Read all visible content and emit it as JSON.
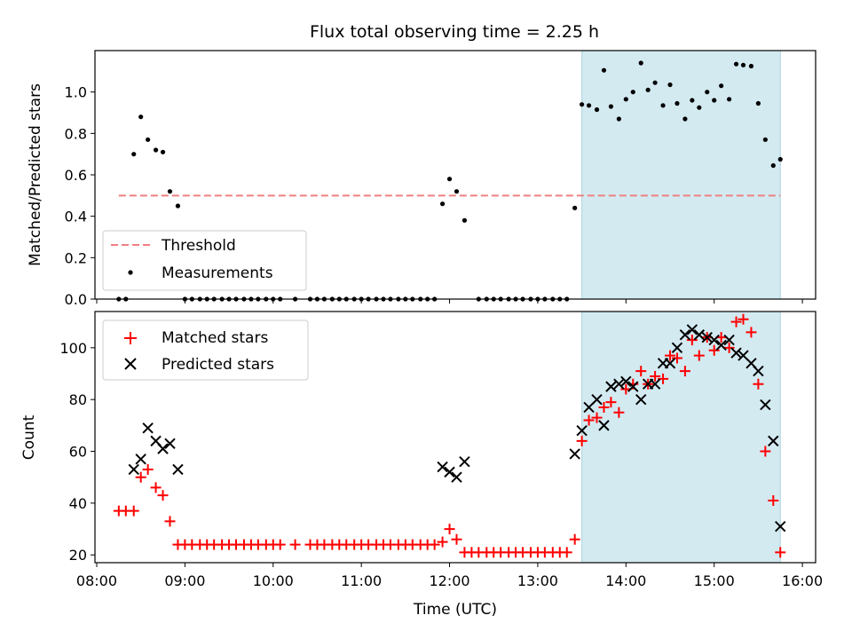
{
  "chart_data": {
    "title": "Flux total observing time = 2.25 h",
    "xlabel": "Time (UTC)",
    "x_ticks": [
      "08:00",
      "09:00",
      "10:00",
      "11:00",
      "12:00",
      "13:00",
      "14:00",
      "15:00",
      "16:00"
    ],
    "x_range_hours": [
      7.98,
      16.15
    ],
    "observing_window_hours": [
      13.5,
      15.75
    ],
    "window_color": "#d3eaf1",
    "panels": [
      {
        "type": "scatter",
        "ylabel": "Matched/Predicted stars",
        "ylim": [
          0,
          1.2
        ],
        "y_ticks": [
          "0.0",
          "0.2",
          "0.4",
          "0.6",
          "0.8",
          "1.0"
        ],
        "legend_position": "lower-left",
        "threshold": {
          "name": "Threshold",
          "value": 0.5,
          "x_range": [
            8.25,
            15.75
          ],
          "color": "#f08080"
        },
        "series": [
          {
            "name": "Measurements",
            "color": "#000000",
            "points": [
              [
                8.25,
                0
              ],
              [
                8.33,
                0
              ],
              [
                8.42,
                0.7
              ],
              [
                8.5,
                0.88
              ],
              [
                8.58,
                0.77
              ],
              [
                8.67,
                0.72
              ],
              [
                8.75,
                0.71
              ],
              [
                8.83,
                0.52
              ],
              [
                8.92,
                0.45
              ],
              [
                9.0,
                0
              ],
              [
                9.08,
                0
              ],
              [
                9.17,
                0
              ],
              [
                9.25,
                0
              ],
              [
                9.33,
                0
              ],
              [
                9.42,
                0
              ],
              [
                9.5,
                0
              ],
              [
                9.58,
                0
              ],
              [
                9.67,
                0
              ],
              [
                9.75,
                0
              ],
              [
                9.83,
                0
              ],
              [
                9.92,
                0
              ],
              [
                10.0,
                0
              ],
              [
                10.08,
                0
              ],
              [
                10.25,
                0
              ],
              [
                10.42,
                0
              ],
              [
                10.5,
                0
              ],
              [
                10.58,
                0
              ],
              [
                10.67,
                0
              ],
              [
                10.75,
                0
              ],
              [
                10.83,
                0
              ],
              [
                10.92,
                0
              ],
              [
                11.0,
                0
              ],
              [
                11.08,
                0
              ],
              [
                11.17,
                0
              ],
              [
                11.25,
                0
              ],
              [
                11.33,
                0
              ],
              [
                11.42,
                0
              ],
              [
                11.5,
                0
              ],
              [
                11.58,
                0
              ],
              [
                11.67,
                0
              ],
              [
                11.75,
                0
              ],
              [
                11.83,
                0
              ],
              [
                11.92,
                0.46
              ],
              [
                12.0,
                0.58
              ],
              [
                12.08,
                0.52
              ],
              [
                12.17,
                0.38
              ],
              [
                12.33,
                0
              ],
              [
                12.42,
                0
              ],
              [
                12.5,
                0
              ],
              [
                12.58,
                0
              ],
              [
                12.67,
                0
              ],
              [
                12.75,
                0
              ],
              [
                12.83,
                0
              ],
              [
                12.92,
                0
              ],
              [
                13.0,
                0
              ],
              [
                13.08,
                0
              ],
              [
                13.17,
                0
              ],
              [
                13.25,
                0
              ],
              [
                13.33,
                0
              ],
              [
                13.42,
                0.44
              ],
              [
                13.5,
                0.94
              ],
              [
                13.58,
                0.935
              ],
              [
                13.67,
                0.915
              ],
              [
                13.75,
                1.105
              ],
              [
                13.83,
                0.93
              ],
              [
                13.92,
                0.87
              ],
              [
                14.0,
                0.965
              ],
              [
                14.08,
                1.0
              ],
              [
                14.17,
                1.14
              ],
              [
                14.25,
                1.01
              ],
              [
                14.33,
                1.045
              ],
              [
                14.42,
                0.935
              ],
              [
                14.5,
                1.035
              ],
              [
                14.58,
                0.945
              ],
              [
                14.67,
                0.87
              ],
              [
                14.75,
                0.96
              ],
              [
                14.83,
                0.925
              ],
              [
                14.92,
                1.0
              ],
              [
                15.0,
                0.96
              ],
              [
                15.08,
                1.03
              ],
              [
                15.17,
                0.965
              ],
              [
                15.25,
                1.135
              ],
              [
                15.33,
                1.13
              ],
              [
                15.42,
                1.125
              ],
              [
                15.5,
                0.945
              ],
              [
                15.58,
                0.77
              ],
              [
                15.67,
                0.645
              ],
              [
                15.75,
                0.675
              ]
            ]
          }
        ]
      },
      {
        "type": "scatter",
        "ylabel": "Count",
        "ylim": [
          17,
          114
        ],
        "y_ticks": [
          "20",
          "40",
          "60",
          "80",
          "100"
        ],
        "legend_position": "upper-left",
        "series": [
          {
            "name": "Matched stars",
            "marker": "plus",
            "color": "#ff0000",
            "points": [
              [
                8.25,
                37
              ],
              [
                8.33,
                37
              ],
              [
                8.42,
                37
              ],
              [
                8.5,
                50
              ],
              [
                8.58,
                53
              ],
              [
                8.67,
                46
              ],
              [
                8.75,
                43
              ],
              [
                8.83,
                33
              ],
              [
                8.92,
                24
              ],
              [
                9.0,
                24
              ],
              [
                9.08,
                24
              ],
              [
                9.17,
                24
              ],
              [
                9.25,
                24
              ],
              [
                9.33,
                24
              ],
              [
                9.42,
                24
              ],
              [
                9.5,
                24
              ],
              [
                9.58,
                24
              ],
              [
                9.67,
                24
              ],
              [
                9.75,
                24
              ],
              [
                9.83,
                24
              ],
              [
                9.92,
                24
              ],
              [
                10.0,
                24
              ],
              [
                10.08,
                24
              ],
              [
                10.25,
                24
              ],
              [
                10.42,
                24
              ],
              [
                10.5,
                24
              ],
              [
                10.58,
                24
              ],
              [
                10.67,
                24
              ],
              [
                10.75,
                24
              ],
              [
                10.83,
                24
              ],
              [
                10.92,
                24
              ],
              [
                11.0,
                24
              ],
              [
                11.08,
                24
              ],
              [
                11.17,
                24
              ],
              [
                11.25,
                24
              ],
              [
                11.33,
                24
              ],
              [
                11.42,
                24
              ],
              [
                11.5,
                24
              ],
              [
                11.58,
                24
              ],
              [
                11.67,
                24
              ],
              [
                11.75,
                24
              ],
              [
                11.83,
                24
              ],
              [
                11.92,
                25
              ],
              [
                12.0,
                30
              ],
              [
                12.08,
                26
              ],
              [
                12.17,
                21
              ],
              [
                12.25,
                21
              ],
              [
                12.33,
                21
              ],
              [
                12.42,
                21
              ],
              [
                12.5,
                21
              ],
              [
                12.58,
                21
              ],
              [
                12.67,
                21
              ],
              [
                12.75,
                21
              ],
              [
                12.83,
                21
              ],
              [
                12.92,
                21
              ],
              [
                13.0,
                21
              ],
              [
                13.08,
                21
              ],
              [
                13.17,
                21
              ],
              [
                13.25,
                21
              ],
              [
                13.33,
                21
              ],
              [
                13.42,
                26
              ],
              [
                13.5,
                64
              ],
              [
                13.58,
                72
              ],
              [
                13.67,
                73
              ],
              [
                13.75,
                77
              ],
              [
                13.83,
                79
              ],
              [
                13.92,
                75
              ],
              [
                14.0,
                84
              ],
              [
                14.08,
                86
              ],
              [
                14.17,
                91
              ],
              [
                14.25,
                86
              ],
              [
                14.33,
                89
              ],
              [
                14.42,
                88
              ],
              [
                14.5,
                97
              ],
              [
                14.58,
                96
              ],
              [
                14.67,
                91
              ],
              [
                14.75,
                103
              ],
              [
                14.83,
                97
              ],
              [
                14.92,
                104
              ],
              [
                15.0,
                99
              ],
              [
                15.08,
                104
              ],
              [
                15.17,
                100
              ],
              [
                15.25,
                110
              ],
              [
                15.33,
                111
              ],
              [
                15.42,
                106
              ],
              [
                15.5,
                86
              ],
              [
                15.58,
                60
              ],
              [
                15.67,
                41
              ],
              [
                15.75,
                21
              ]
            ]
          },
          {
            "name": "Predicted stars",
            "marker": "x",
            "color": "#000000",
            "points": [
              [
                8.42,
                53
              ],
              [
                8.5,
                57
              ],
              [
                8.58,
                69
              ],
              [
                8.67,
                64
              ],
              [
                8.75,
                61
              ],
              [
                8.83,
                63
              ],
              [
                8.92,
                53
              ],
              [
                11.92,
                54
              ],
              [
                12.0,
                52
              ],
              [
                12.08,
                50
              ],
              [
                12.17,
                56
              ],
              [
                13.42,
                59
              ],
              [
                13.5,
                68
              ],
              [
                13.58,
                77
              ],
              [
                13.67,
                80
              ],
              [
                13.75,
                70
              ],
              [
                13.83,
                85
              ],
              [
                13.92,
                86
              ],
              [
                14.0,
                87
              ],
              [
                14.08,
                85
              ],
              [
                14.17,
                80
              ],
              [
                14.25,
                86
              ],
              [
                14.33,
                86
              ],
              [
                14.42,
                94
              ],
              [
                14.5,
                94
              ],
              [
                14.58,
                100
              ],
              [
                14.67,
                105
              ],
              [
                14.75,
                107
              ],
              [
                14.83,
                105
              ],
              [
                14.92,
                104
              ],
              [
                15.0,
                103
              ],
              [
                15.08,
                101
              ],
              [
                15.17,
                103
              ],
              [
                15.25,
                98
              ],
              [
                15.33,
                97
              ],
              [
                15.42,
                94
              ],
              [
                15.5,
                91
              ],
              [
                15.58,
                78
              ],
              [
                15.67,
                64
              ],
              [
                15.75,
                31
              ]
            ]
          }
        ]
      }
    ]
  }
}
